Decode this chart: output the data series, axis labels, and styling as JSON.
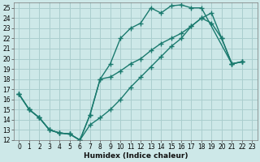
{
  "xlabel": "Humidex (Indice chaleur)",
  "ylabel": "",
  "background_color": "#cde8e8",
  "grid_color": "#aacece",
  "line_color": "#1a7a6e",
  "xlim": [
    -0.5,
    23.5
  ],
  "ylim": [
    12,
    25.5
  ],
  "xticks": [
    0,
    1,
    2,
    3,
    4,
    5,
    6,
    7,
    8,
    9,
    10,
    11,
    12,
    13,
    14,
    15,
    16,
    17,
    18,
    19,
    20,
    21,
    22,
    23
  ],
  "yticks": [
    12,
    13,
    14,
    15,
    16,
    17,
    18,
    19,
    20,
    21,
    22,
    23,
    24,
    25
  ],
  "line1_x": [
    0,
    1,
    2,
    3,
    4,
    5,
    6,
    7,
    8,
    9,
    10,
    11,
    12,
    13,
    14,
    15,
    16,
    17,
    18,
    21,
    22
  ],
  "line1_y": [
    16.5,
    15.0,
    14.2,
    13.0,
    12.7,
    12.6,
    12.0,
    14.5,
    18.0,
    19.5,
    22.0,
    23.0,
    23.5,
    25.0,
    24.5,
    25.2,
    25.3,
    25.0,
    25.0,
    19.5,
    19.7
  ],
  "line2_x": [
    0,
    1,
    2,
    3,
    4,
    5,
    6,
    7,
    8,
    9,
    10,
    11,
    12,
    13,
    14,
    15,
    16,
    17,
    18,
    19,
    20,
    21,
    22
  ],
  "line2_y": [
    16.5,
    15.0,
    14.2,
    13.0,
    12.7,
    12.6,
    12.0,
    13.5,
    14.2,
    15.0,
    16.0,
    17.2,
    18.2,
    19.2,
    20.2,
    21.2,
    22.0,
    23.2,
    24.0,
    23.5,
    22.0,
    19.5,
    19.7
  ],
  "line3_x": [
    0,
    1,
    2,
    3,
    4,
    5,
    6,
    7,
    8,
    9,
    10,
    11,
    12,
    13,
    14,
    15,
    16,
    17,
    18,
    19,
    20,
    21,
    22
  ],
  "line3_y": [
    16.5,
    15.0,
    14.2,
    13.0,
    12.7,
    12.6,
    12.0,
    14.5,
    18.0,
    18.2,
    18.8,
    19.5,
    20.0,
    20.8,
    21.5,
    22.0,
    22.5,
    23.2,
    24.0,
    24.5,
    22.0,
    19.5,
    19.7
  ],
  "marker": "+",
  "marker_size": 4,
  "line_width": 1.0,
  "tick_fontsize": 5.5,
  "xlabel_fontsize": 6.5
}
